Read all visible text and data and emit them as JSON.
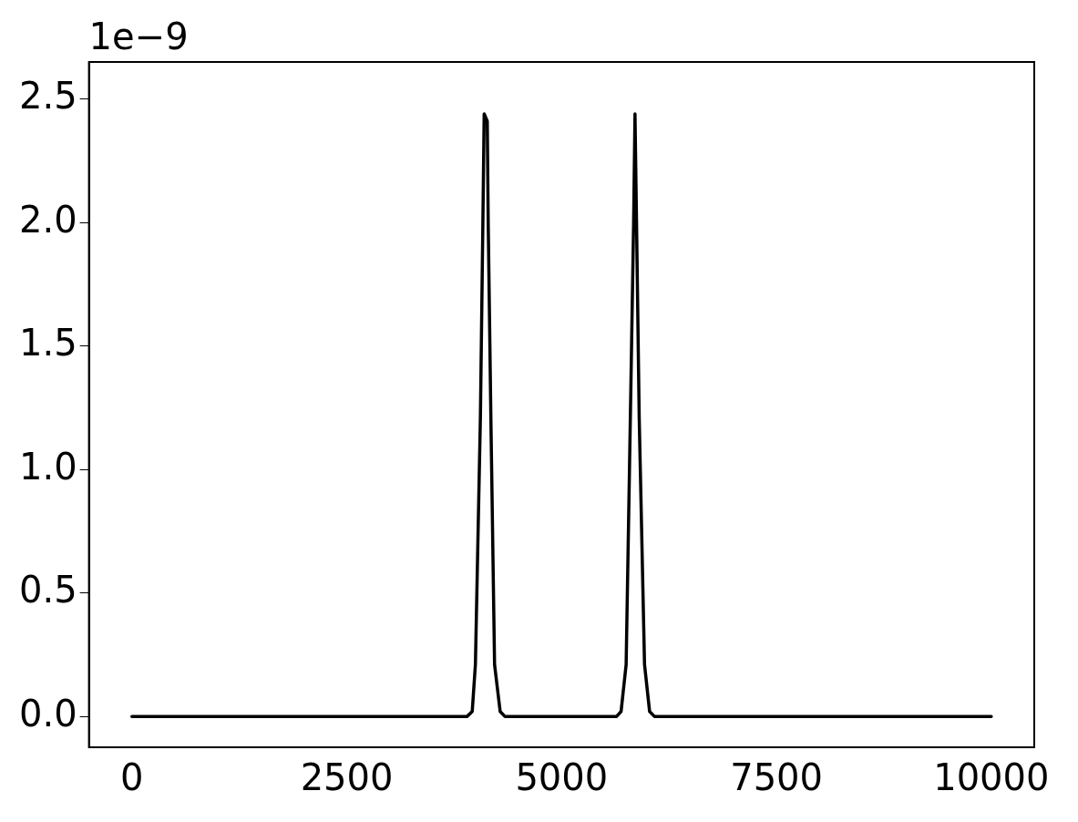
{
  "chart_data": {
    "type": "line",
    "annotations": [
      "1e−9"
    ],
    "xlim": [
      -500,
      10500
    ],
    "xticks": [
      0,
      2500,
      5000,
      7500,
      10000
    ],
    "ylim": [
      -0.125,
      2.65
    ],
    "yticks": [
      {
        "value": 0,
        "label": "0.0"
      },
      {
        "value": 0.5,
        "label": "0.5"
      },
      {
        "value": 1,
        "label": "1.0"
      },
      {
        "value": 1.5,
        "label": "1.5"
      },
      {
        "value": 2,
        "label": "2.0"
      },
      {
        "value": 2.5,
        "label": "2.5"
      }
    ],
    "grid": false,
    "legend": false,
    "marker": "none",
    "line_style": "solid",
    "series": [
      {
        "color": "#000000",
        "x": [
          0,
          3900,
          3960,
          3997,
          4055,
          4084,
          4099,
          4135,
          4146,
          4177,
          4220,
          4285,
          4340,
          5640,
          5692,
          5751,
          5800,
          5838,
          5854,
          5872,
          5903,
          5965,
          6024,
          6080,
          10000
        ],
        "values": [
          0,
          0,
          0.02,
          0.21,
          1.21,
          2.0,
          2.44,
          2.41,
          2.0,
          1.21,
          0.21,
          0.02,
          0,
          0,
          0.02,
          0.21,
          1.21,
          2.0,
          2.44,
          2.0,
          1.21,
          0.21,
          0.02,
          0,
          0
        ]
      }
    ]
  }
}
